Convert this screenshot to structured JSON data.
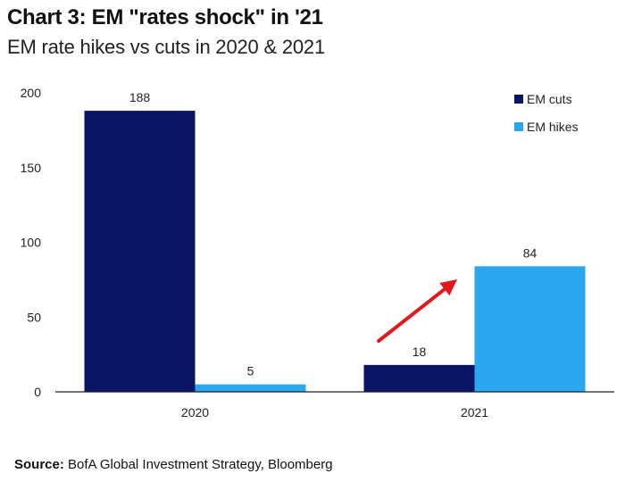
{
  "header": {
    "title": "Chart 3: EM \"rates shock\" in '21",
    "subtitle": "EM rate hikes vs cuts in 2020 & 2021"
  },
  "footer": {
    "source_label": "Source:",
    "source_text": "BofA Global Investment Strategy, Bloomberg"
  },
  "chart_data": {
    "type": "bar",
    "title": "Chart 3: EM \"rates shock\" in '21",
    "subtitle": "EM rate hikes vs cuts in 2020 & 2021",
    "categories": [
      "2020",
      "2021"
    ],
    "series": [
      {
        "name": "EM cuts",
        "values": [
          188,
          18
        ],
        "color": "#0a1464"
      },
      {
        "name": "EM hikes",
        "values": [
          5,
          84
        ],
        "color": "#2aa7ee"
      }
    ],
    "ylim": [
      0,
      200
    ],
    "yticks": [
      0,
      50,
      100,
      150,
      200
    ],
    "xlabel": "",
    "ylabel": "",
    "grid": false,
    "legend_position": "top-right",
    "annotation": {
      "type": "arrow",
      "color": "#e0191e",
      "direction": "up-right"
    }
  }
}
